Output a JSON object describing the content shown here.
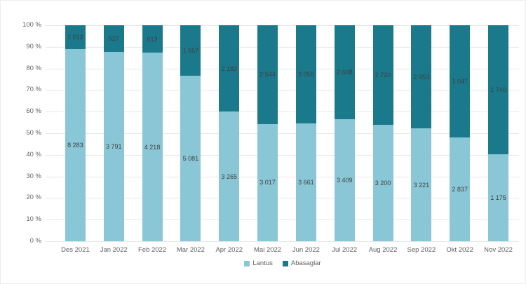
{
  "chart_data": {
    "type": "bar",
    "variant": "100%-stacked-column",
    "title": "",
    "xlabel": "",
    "ylabel": "",
    "grid": true,
    "legend_position": "bottom",
    "categories": [
      "Des 2021",
      "Jan 2022",
      "Feb 2022",
      "Mar 2022",
      "Apr 2022",
      "Mai 2022",
      "Jun 2022",
      "Jul 2022",
      "Aug 2022",
      "Sep 2022",
      "Okt 2022",
      "Nov 2022"
    ],
    "series": [
      {
        "name": "Lantus",
        "color": "#8ac7d6",
        "values": [
          8283,
          3791,
          4218,
          5081,
          3265,
          3017,
          3661,
          3409,
          3200,
          3221,
          2837,
          1175
        ]
      },
      {
        "name": "Abasaglar",
        "color": "#1a7a8c",
        "values": [
          1012,
          527,
          613,
          1557,
          2182,
          2544,
          3056,
          2608,
          2720,
          2953,
          3047,
          1740
        ]
      }
    ],
    "y_axis": {
      "min": 0,
      "max": 100,
      "tick_labels": [
        "0 %",
        "10 %",
        "20 %",
        "30 %",
        "40 %",
        "50 %",
        "60 %",
        "70 %",
        "80 %",
        "90 %",
        "100 %"
      ]
    },
    "value_labels": {
      "visible": true,
      "thousands_separator": " ",
      "color": "#3f3f3f"
    },
    "colors": {
      "gridline": "#e7e7e7",
      "axis_text": "#5f5f5f",
      "background": "#ffffff"
    }
  }
}
